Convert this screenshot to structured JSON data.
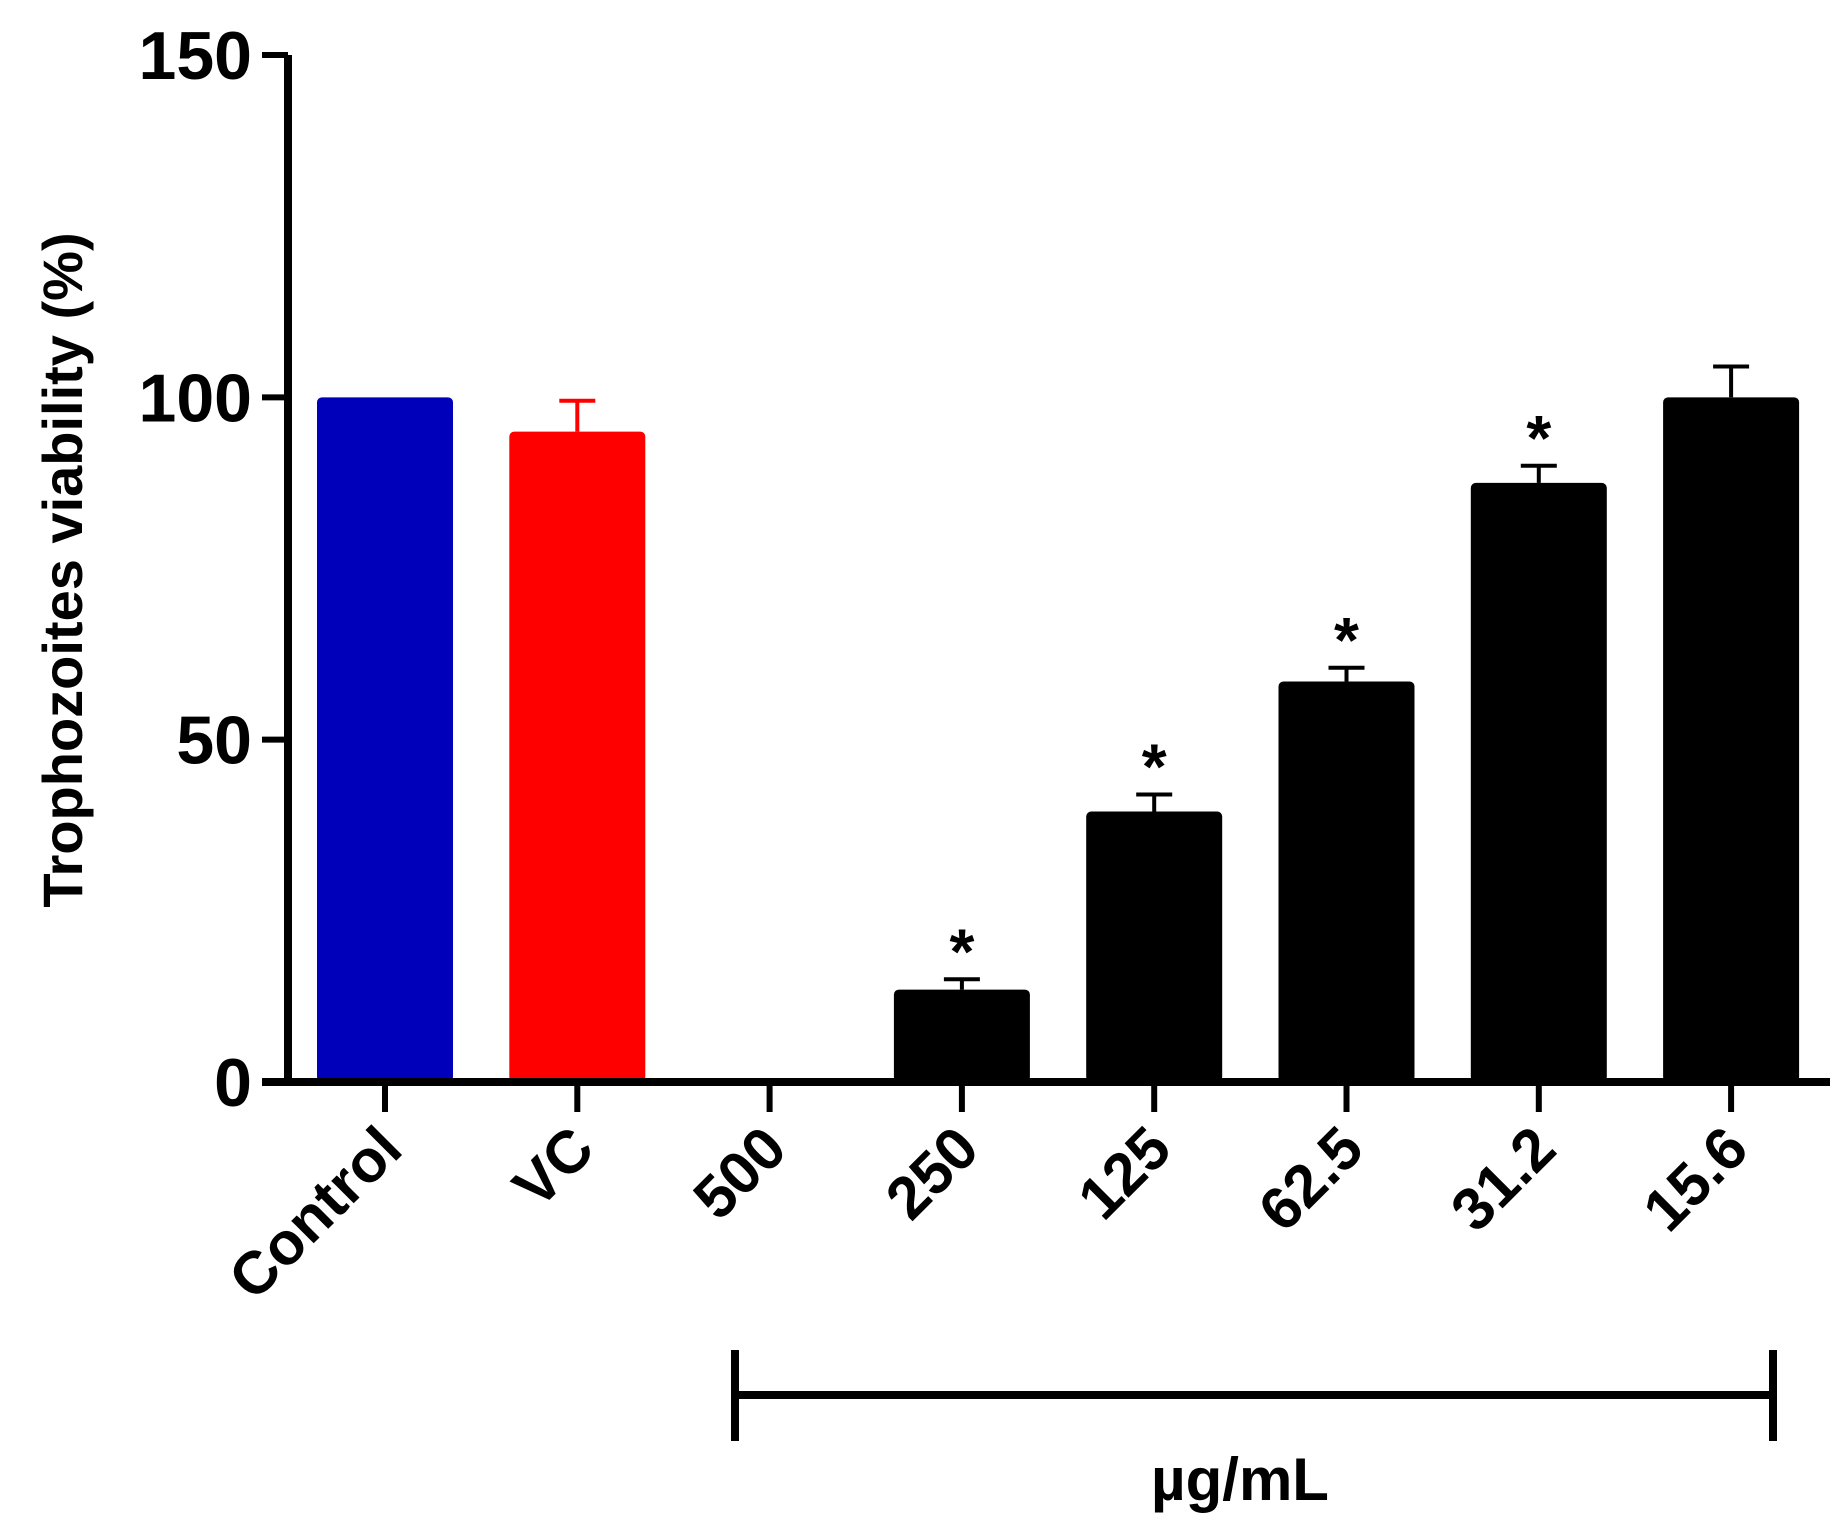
{
  "chart_data": {
    "type": "bar",
    "title": "",
    "ylabel": "Trophozoites viability (%)",
    "xlabel": "",
    "ylim": [
      0,
      150
    ],
    "yticks": [
      "0",
      "50",
      "100",
      "150"
    ],
    "categories": [
      "Control",
      "VC",
      "500",
      "250",
      "125",
      "62.5",
      "31.2",
      "15.6"
    ],
    "values": [
      100,
      95,
      0,
      13.5,
      39.5,
      58.5,
      87.5,
      100
    ],
    "errors": [
      0,
      4.5,
      0,
      1.5,
      2.5,
      2,
      2.5,
      4.5
    ],
    "bar_colors": [
      "#0000BB",
      "#FF0000",
      "#000000",
      "#000000",
      "#000000",
      "#000000",
      "#000000",
      "#000000"
    ],
    "significance": [
      "",
      "",
      "",
      "*",
      "*",
      "*",
      "*",
      ""
    ],
    "group_bracket": {
      "label": "µg/mL",
      "from": "500",
      "to": "15.6"
    }
  }
}
